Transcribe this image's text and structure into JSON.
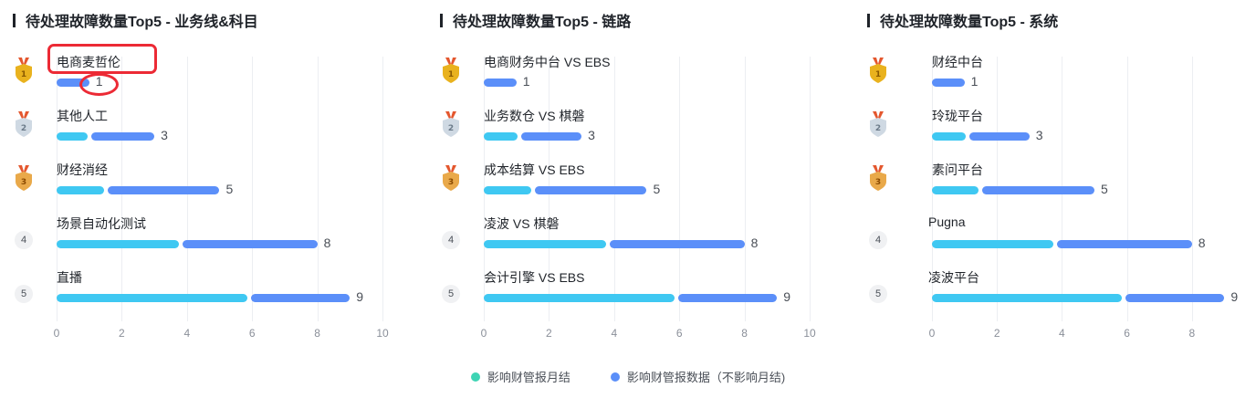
{
  "colors": {
    "series_a": "#3fc8f2",
    "series_b": "#5b8ff9",
    "legend_a": "#3ed4b4",
    "legend_b": "#5b8ff9",
    "gold": "#e9b21e",
    "silver": "#cfd9e3",
    "bronze": "#e9a94a",
    "ribbon": "#e4572e",
    "annotation": "#ec2a35"
  },
  "legend": [
    {
      "name": "影响财管报月结",
      "color": "#3ed4b4"
    },
    {
      "name": "影响财管报数据（不影响月结)",
      "color": "#5b8ff9"
    }
  ],
  "chart_data": [
    {
      "type": "bar",
      "orientation": "horizontal",
      "stacked": true,
      "title": "待处理故障数量Top5 - 业务线&科目",
      "categories": [
        "电商麦哲伦",
        "其他人工",
        "财经消经",
        "场景自动化测试",
        "直播"
      ],
      "totals": [
        1,
        3,
        5,
        8,
        9
      ],
      "series": [
        {
          "values": [
            0,
            1,
            1.5,
            3.8,
            5.9
          ]
        },
        {
          "values": [
            1,
            2,
            3.5,
            4.2,
            3.1
          ]
        }
      ],
      "xlim": [
        0,
        10
      ],
      "xticks": [
        "0",
        "2",
        "4",
        "6",
        "8",
        "10"
      ],
      "grid": true
    },
    {
      "type": "bar",
      "orientation": "horizontal",
      "stacked": true,
      "title": "待处理故障数量Top5 - 链路",
      "categories": [
        "电商财务中台 VS EBS",
        "业务数仓 VS 棋磐",
        "成本结算 VS EBS",
        "凌波 VS 棋磐",
        "会计引擎 VS EBS"
      ],
      "totals": [
        1,
        3,
        5,
        8,
        9
      ],
      "series": [
        {
          "values": [
            0,
            1.1,
            1.5,
            3.8,
            5.9
          ]
        },
        {
          "values": [
            1,
            1.9,
            3.5,
            4.2,
            3.1
          ]
        }
      ],
      "xlim": [
        0,
        10
      ],
      "xticks": [
        "0",
        "2",
        "4",
        "6",
        "8",
        "10"
      ],
      "grid": true
    },
    {
      "type": "bar",
      "orientation": "horizontal",
      "stacked": true,
      "title": "待处理故障数量Top5 - 系统",
      "categories": [
        "财经中台",
        "玲珑平台",
        "素问平台",
        "Pugna",
        "凌波平台"
      ],
      "totals": [
        1,
        3,
        5,
        8,
        9
      ],
      "series": [
        {
          "values": [
            0,
            1.1,
            1.5,
            3.8,
            5.9
          ]
        },
        {
          "values": [
            1,
            1.9,
            3.5,
            4.2,
            3.1
          ]
        }
      ],
      "xlim": [
        0,
        9
      ],
      "xticks": [
        "0",
        "2",
        "4",
        "6",
        "8"
      ],
      "grid": true
    }
  ],
  "ranks": [
    "1",
    "2",
    "3",
    "4",
    "5"
  ]
}
